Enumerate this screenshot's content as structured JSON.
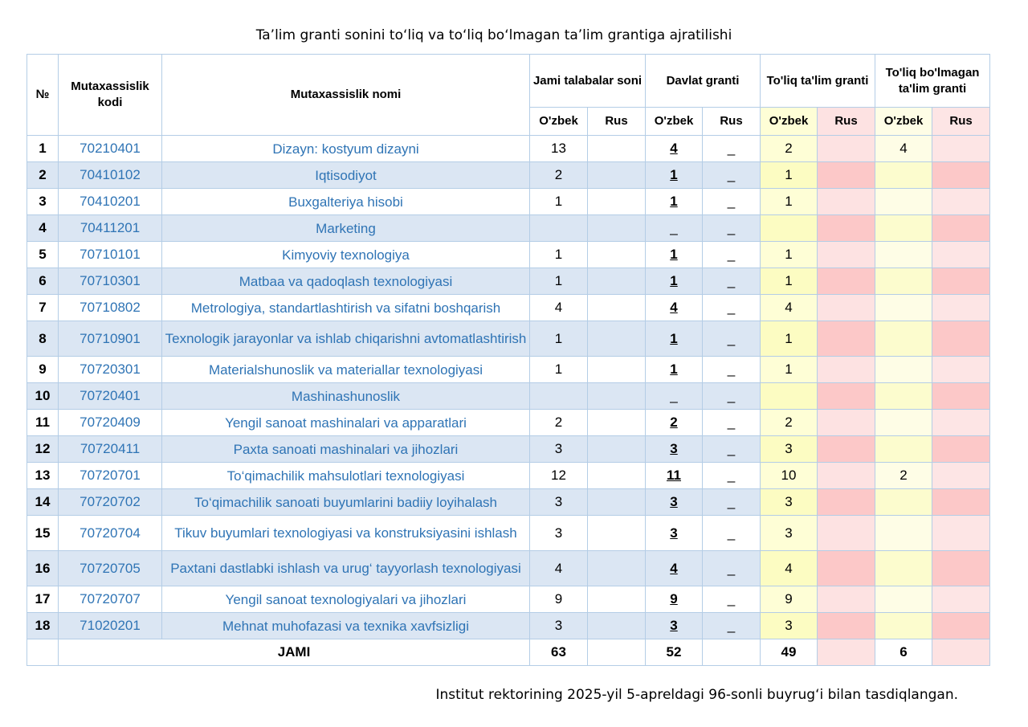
{
  "title": "Ta’lim granti sonini to‘liq va to‘liq bo‘lmagan ta’lim grantiga ajratilishi",
  "footer": "Institut rektorining 2025-yil 5-apreldagi 96-sonli buyrug‘i bilan tasdiqlangan.",
  "headers": {
    "no": "№",
    "code": "Mutaxassislik kodi",
    "name": "Mutaxassislik nomi",
    "total_students": "Jami talabalar soni",
    "state_grant": "Davlat granti",
    "full_grant": "To'liq ta'lim granti",
    "partial_grant": "To'liq bo'lmagan ta'lim granti",
    "uz": "O'zbek",
    "ru": "Rus"
  },
  "rows": [
    {
      "no": "1",
      "code": "70210401",
      "name": "Dizayn: kostyum dizayni",
      "total_uz": "13",
      "total_ru": "",
      "gov_uz": "4",
      "gov_ru": "_",
      "full_uz": "2",
      "full_ru": "",
      "part_uz": "4",
      "part_ru": ""
    },
    {
      "no": "2",
      "code": "70410102",
      "name": "Iqtisodiyot",
      "total_uz": "2",
      "total_ru": "",
      "gov_uz": "1",
      "gov_ru": "_",
      "full_uz": "1",
      "full_ru": "",
      "part_uz": "",
      "part_ru": ""
    },
    {
      "no": "3",
      "code": "70410201",
      "name": "Buxgalteriya hisobi",
      "total_uz": "1",
      "total_ru": "",
      "gov_uz": "1",
      "gov_ru": "_",
      "full_uz": "1",
      "full_ru": "",
      "part_uz": "",
      "part_ru": ""
    },
    {
      "no": "4",
      "code": "70411201",
      "name": "Marketing",
      "total_uz": "",
      "total_ru": "",
      "gov_uz": "_",
      "gov_ru": "_",
      "full_uz": "",
      "full_ru": "",
      "part_uz": "",
      "part_ru": ""
    },
    {
      "no": "5",
      "code": "70710101",
      "name": "Kimyoviy texnologiya",
      "total_uz": "1",
      "total_ru": "",
      "gov_uz": "1",
      "gov_ru": "_",
      "full_uz": "1",
      "full_ru": "",
      "part_uz": "",
      "part_ru": ""
    },
    {
      "no": "6",
      "code": "70710301",
      "name": "Matbaa va qadoqlash texnologiyasi",
      "total_uz": "1",
      "total_ru": "",
      "gov_uz": "1",
      "gov_ru": "_",
      "full_uz": "1",
      "full_ru": "",
      "part_uz": "",
      "part_ru": ""
    },
    {
      "no": "7",
      "code": "70710802",
      "name": "Metrologiya, standartlashtirish va sifatni boshqarish",
      "total_uz": "4",
      "total_ru": "",
      "gov_uz": "4",
      "gov_ru": "_",
      "full_uz": "4",
      "full_ru": "",
      "part_uz": "",
      "part_ru": ""
    },
    {
      "no": "8",
      "code": "70710901",
      "name": "Texnologik jarayonlar va ishlab chiqarishni avtomatlashtirish",
      "total_uz": "1",
      "total_ru": "",
      "gov_uz": "1",
      "gov_ru": "_",
      "full_uz": "1",
      "full_ru": "",
      "part_uz": "",
      "part_ru": ""
    },
    {
      "no": "9",
      "code": "70720301",
      "name": "Materialshunoslik va materiallar texnologiyasi",
      "total_uz": "1",
      "total_ru": "",
      "gov_uz": "1",
      "gov_ru": "_",
      "full_uz": "1",
      "full_ru": "",
      "part_uz": "",
      "part_ru": ""
    },
    {
      "no": "10",
      "code": "70720401",
      "name": "Mashinashunoslik",
      "total_uz": "",
      "total_ru": "",
      "gov_uz": "_",
      "gov_ru": "_",
      "full_uz": "",
      "full_ru": "",
      "part_uz": "",
      "part_ru": ""
    },
    {
      "no": "11",
      "code": "70720409",
      "name": "Yengil sanoat mashinalari va apparatlari",
      "total_uz": "2",
      "total_ru": "",
      "gov_uz": "2",
      "gov_ru": "_",
      "full_uz": "2",
      "full_ru": "",
      "part_uz": "",
      "part_ru": ""
    },
    {
      "no": "12",
      "code": "70720411",
      "name": "Paxta sanoati mashinalari va jihozlari",
      "total_uz": "3",
      "total_ru": "",
      "gov_uz": "3",
      "gov_ru": "_",
      "full_uz": "3",
      "full_ru": "",
      "part_uz": "",
      "part_ru": ""
    },
    {
      "no": "13",
      "code": "70720701",
      "name": "To‘qimachilik mahsulotlari texnologiyasi",
      "total_uz": "12",
      "total_ru": "",
      "gov_uz": "11",
      "gov_ru": "_",
      "full_uz": "10",
      "full_ru": "",
      "part_uz": "2",
      "part_ru": ""
    },
    {
      "no": "14",
      "code": "70720702",
      "name": "To‘qimachilik sanoati buyumlarini badiiy loyihalash",
      "total_uz": "3",
      "total_ru": "",
      "gov_uz": "3",
      "gov_ru": "_",
      "full_uz": "3",
      "full_ru": "",
      "part_uz": "",
      "part_ru": ""
    },
    {
      "no": "15",
      "code": "70720704",
      "name": "Tikuv buyumlari texnologiyasi va konstruksiyasini ishlash",
      "total_uz": "3",
      "total_ru": "",
      "gov_uz": "3",
      "gov_ru": "_",
      "full_uz": "3",
      "full_ru": "",
      "part_uz": "",
      "part_ru": ""
    },
    {
      "no": "16",
      "code": "70720705",
      "name": "Paxtani dastlabki ishlash va urug‘ tayyorlash texnologiyasi",
      "total_uz": "4",
      "total_ru": "",
      "gov_uz": "4",
      "gov_ru": "_",
      "full_uz": "4",
      "full_ru": "",
      "part_uz": "",
      "part_ru": ""
    },
    {
      "no": "17",
      "code": "70720707",
      "name": "Yengil sanoat texnologiyalari va jihozlari",
      "total_uz": "9",
      "total_ru": "",
      "gov_uz": "9",
      "gov_ru": "_",
      "full_uz": "9",
      "full_ru": "",
      "part_uz": "",
      "part_ru": ""
    },
    {
      "no": "18",
      "code": "71020201",
      "name": "Mehnat muhofazasi va texnika xavfsizligi",
      "total_uz": "3",
      "total_ru": "",
      "gov_uz": "3",
      "gov_ru": "_",
      "full_uz": "3",
      "full_ru": "",
      "part_uz": "",
      "part_ru": ""
    }
  ],
  "totals": {
    "label": "JAMI",
    "total_uz": "63",
    "gov_uz": "52",
    "full_uz": "49",
    "part_uz": "6"
  }
}
